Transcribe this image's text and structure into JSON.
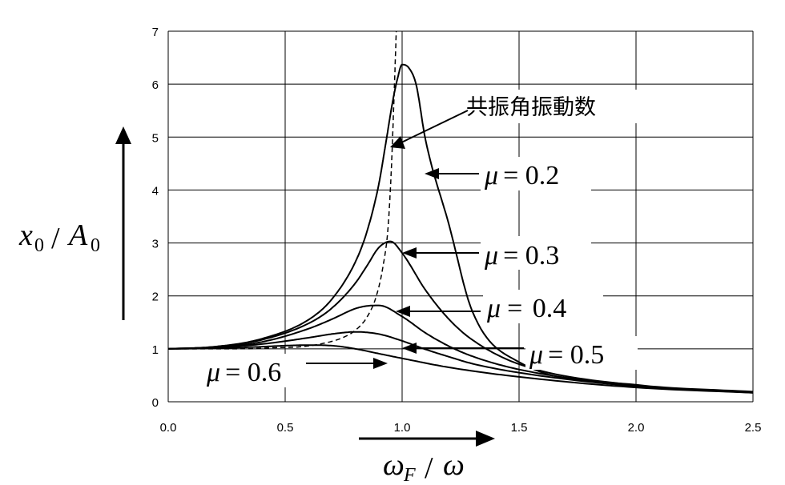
{
  "chart_data": {
    "type": "line",
    "xlim": [
      0,
      2.5
    ],
    "ylim": [
      0,
      7
    ],
    "x_ticks": [
      "0.0",
      "0.5",
      "1.0",
      "1.5",
      "2.0",
      "2.5"
    ],
    "y_ticks": [
      "0",
      "1",
      "2",
      "3",
      "4",
      "5",
      "6",
      "7"
    ],
    "grid": true,
    "series": [
      {
        "name": "μ = 0.2",
        "mu_value": "0.2",
        "style": "solid",
        "x": [
          0,
          0.2,
          0.4,
          0.6,
          0.7,
          0.8,
          0.85,
          0.9,
          0.93,
          0.96,
          0.98,
          1.0,
          1.03,
          1.06,
          1.1,
          1.2,
          1.3,
          1.5,
          2.0,
          2.5
        ],
        "y": [
          1.0,
          1.04,
          1.19,
          1.55,
          1.94,
          2.64,
          3.22,
          4.1,
          4.88,
          5.68,
          6.1,
          6.37,
          6.3,
          5.99,
          4.95,
          3.35,
          1.71,
          0.75,
          0.32,
          0.19
        ]
      },
      {
        "name": "μ = 0.3",
        "mu_value": "0.3",
        "style": "solid",
        "x": [
          0,
          0.2,
          0.4,
          0.6,
          0.7,
          0.8,
          0.85,
          0.9,
          0.95,
          1.0,
          1.1,
          1.2,
          1.3,
          1.5,
          2.0,
          2.5
        ],
        "y": [
          1.0,
          1.04,
          1.17,
          1.48,
          1.77,
          2.24,
          2.57,
          2.91,
          3.03,
          2.81,
          2.11,
          1.56,
          1.17,
          0.71,
          0.31,
          0.18
        ]
      },
      {
        "name": "μ = 0.4",
        "mu_value": "0.4",
        "style": "solid",
        "x": [
          0,
          0.2,
          0.4,
          0.6,
          0.7,
          0.8,
          0.85,
          0.9,
          1.0,
          1.1,
          1.2,
          1.3,
          1.5,
          2.0,
          2.5
        ],
        "y": [
          1.0,
          1.03,
          1.13,
          1.38,
          1.56,
          1.76,
          1.81,
          1.82,
          1.61,
          1.3,
          1.05,
          0.86,
          0.61,
          0.3,
          0.18
        ]
      },
      {
        "name": "μ = 0.5",
        "mu_value": "0.5",
        "style": "solid",
        "x": [
          0,
          0.2,
          0.4,
          0.6,
          0.7,
          0.8,
          0.9,
          1.0,
          1.1,
          1.2,
          1.3,
          1.5,
          2.0,
          2.5
        ],
        "y": [
          1.0,
          1.02,
          1.09,
          1.21,
          1.28,
          1.32,
          1.28,
          1.15,
          0.99,
          0.85,
          0.72,
          0.55,
          0.29,
          0.17
        ]
      },
      {
        "name": "μ = 0.6",
        "mu_value": "0.6",
        "style": "solid",
        "x": [
          0,
          0.2,
          0.4,
          0.5,
          0.6,
          0.7,
          0.8,
          0.9,
          1.0,
          1.2,
          1.5,
          2.0,
          2.5
        ],
        "y": [
          1.0,
          1.01,
          1.04,
          1.06,
          1.07,
          1.06,
          1.0,
          0.91,
          0.82,
          0.65,
          0.47,
          0.27,
          0.17
        ]
      },
      {
        "name": "共振角振動数",
        "style": "dashed",
        "x": [
          0,
          0.3,
          0.45,
          0.57,
          0.66,
          0.74,
          0.8,
          0.85,
          0.89,
          0.92,
          0.94,
          0.955,
          0.965,
          0.975
        ],
        "y": [
          1.0,
          1.0,
          1.02,
          1.04,
          1.1,
          1.2,
          1.35,
          1.6,
          2.0,
          2.6,
          3.3,
          4.5,
          5.7,
          7.0
        ]
      }
    ],
    "annotations": {
      "resonance_label": "共振角振動数",
      "mu_symbol": "μ",
      "equals": "= "
    },
    "axis_labels": {
      "y": {
        "var1": "x",
        "sub1": "0",
        "slash": "/",
        "var2": "A",
        "sub2": "0"
      },
      "x": {
        "var1": "ω",
        "sub1": "F",
        "slash": "/",
        "var2": "ω"
      }
    }
  },
  "colors": {
    "line": "#000000",
    "grid": "#000000",
    "background": "#ffffff"
  }
}
